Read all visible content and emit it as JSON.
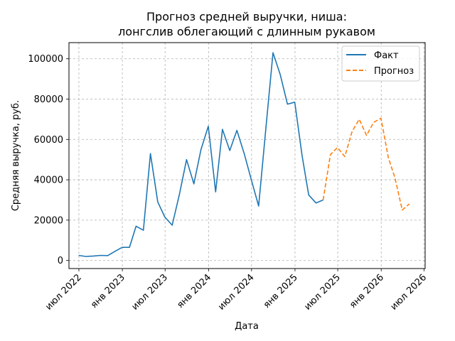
{
  "chart_data": {
    "type": "line",
    "title_line1": "Прогноз средней выручки, ниша:",
    "title_line2": "лонгслив облегающий с длинным рукавом",
    "xlabel": "Дата",
    "ylabel": "Средняя выручка, руб.",
    "xlim": [
      "2022-05-20",
      "2026-07-06"
    ],
    "ylim": [
      -4000,
      108000
    ],
    "x_ticks": [
      {
        "date": "2022-07-01",
        "label": "июл 2022"
      },
      {
        "date": "2023-01-01",
        "label": "янв 2023"
      },
      {
        "date": "2023-07-01",
        "label": "июл 2023"
      },
      {
        "date": "2024-01-01",
        "label": "янв 2024"
      },
      {
        "date": "2024-07-01",
        "label": "июл 2024"
      },
      {
        "date": "2025-01-01",
        "label": "янв 2025"
      },
      {
        "date": "2025-07-01",
        "label": "июл 2025"
      },
      {
        "date": "2026-01-01",
        "label": "янв 2026"
      },
      {
        "date": "2026-07-01",
        "label": "июл 2026"
      }
    ],
    "y_ticks": [
      {
        "value": 0,
        "label": "0"
      },
      {
        "value": 20000,
        "label": "20000"
      },
      {
        "value": 40000,
        "label": "40000"
      },
      {
        "value": 60000,
        "label": "60000"
      },
      {
        "value": 80000,
        "label": "80000"
      },
      {
        "value": 100000,
        "label": "100000"
      }
    ],
    "grid": true,
    "legend_position": "top-right",
    "series": [
      {
        "name": "Факт",
        "color": "#1f77b4",
        "style": "solid",
        "points": [
          {
            "x": "2022-06-30",
            "y": 2500
          },
          {
            "x": "2022-07-31",
            "y": 2000
          },
          {
            "x": "2022-08-31",
            "y": 2200
          },
          {
            "x": "2022-09-30",
            "y": 2500
          },
          {
            "x": "2022-10-31",
            "y": 2400
          },
          {
            "x": "2022-11-30",
            "y": 4500
          },
          {
            "x": "2022-12-31",
            "y": 6500
          },
          {
            "x": "2023-01-31",
            "y": 6500
          },
          {
            "x": "2023-02-28",
            "y": 17000
          },
          {
            "x": "2023-03-31",
            "y": 15000
          },
          {
            "x": "2023-04-30",
            "y": 53000
          },
          {
            "x": "2023-05-31",
            "y": 29000
          },
          {
            "x": "2023-06-30",
            "y": 21500
          },
          {
            "x": "2023-07-31",
            "y": 17500
          },
          {
            "x": "2023-08-31",
            "y": 33000
          },
          {
            "x": "2023-09-30",
            "y": 50000
          },
          {
            "x": "2023-10-31",
            "y": 38000
          },
          {
            "x": "2023-11-30",
            "y": 55000
          },
          {
            "x": "2023-12-31",
            "y": 66500
          },
          {
            "x": "2024-01-31",
            "y": 34000
          },
          {
            "x": "2024-02-29",
            "y": 65000
          },
          {
            "x": "2024-03-31",
            "y": 54500
          },
          {
            "x": "2024-04-30",
            "y": 64500
          },
          {
            "x": "2024-05-31",
            "y": 53000
          },
          {
            "x": "2024-06-30",
            "y": 40000
          },
          {
            "x": "2024-07-31",
            "y": 27000
          },
          {
            "x": "2024-08-31",
            "y": 66000
          },
          {
            "x": "2024-09-30",
            "y": 103000
          },
          {
            "x": "2024-10-31",
            "y": 92000
          },
          {
            "x": "2024-11-30",
            "y": 77500
          },
          {
            "x": "2024-12-31",
            "y": 78500
          },
          {
            "x": "2025-01-31",
            "y": 52000
          },
          {
            "x": "2025-02-28",
            "y": 32500
          },
          {
            "x": "2025-03-31",
            "y": 28500
          },
          {
            "x": "2025-04-30",
            "y": 30000
          }
        ]
      },
      {
        "name": "Прогноз",
        "color": "#ff7f0e",
        "style": "dashed",
        "points": [
          {
            "x": "2025-04-30",
            "y": 30000
          },
          {
            "x": "2025-05-31",
            "y": 52500
          },
          {
            "x": "2025-06-30",
            "y": 56000
          },
          {
            "x": "2025-07-31",
            "y": 51500
          },
          {
            "x": "2025-08-31",
            "y": 64000
          },
          {
            "x": "2025-09-30",
            "y": 70000
          },
          {
            "x": "2025-10-31",
            "y": 62000
          },
          {
            "x": "2025-11-30",
            "y": 68500
          },
          {
            "x": "2025-12-31",
            "y": 70500
          },
          {
            "x": "2026-01-31",
            "y": 51000
          },
          {
            "x": "2026-02-28",
            "y": 41000
          },
          {
            "x": "2026-03-31",
            "y": 25000
          },
          {
            "x": "2026-04-30",
            "y": 28000
          }
        ]
      }
    ]
  }
}
